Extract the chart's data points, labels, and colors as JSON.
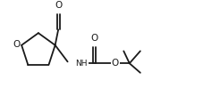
{
  "bg_color": "#ffffff",
  "line_color": "#1a1a1a",
  "line_width": 1.3,
  "font_size": 6.5,
  "fig_width": 2.46,
  "fig_height": 1.08,
  "xlim": [
    0,
    10.5
  ],
  "ylim": [
    0,
    4.5
  ]
}
